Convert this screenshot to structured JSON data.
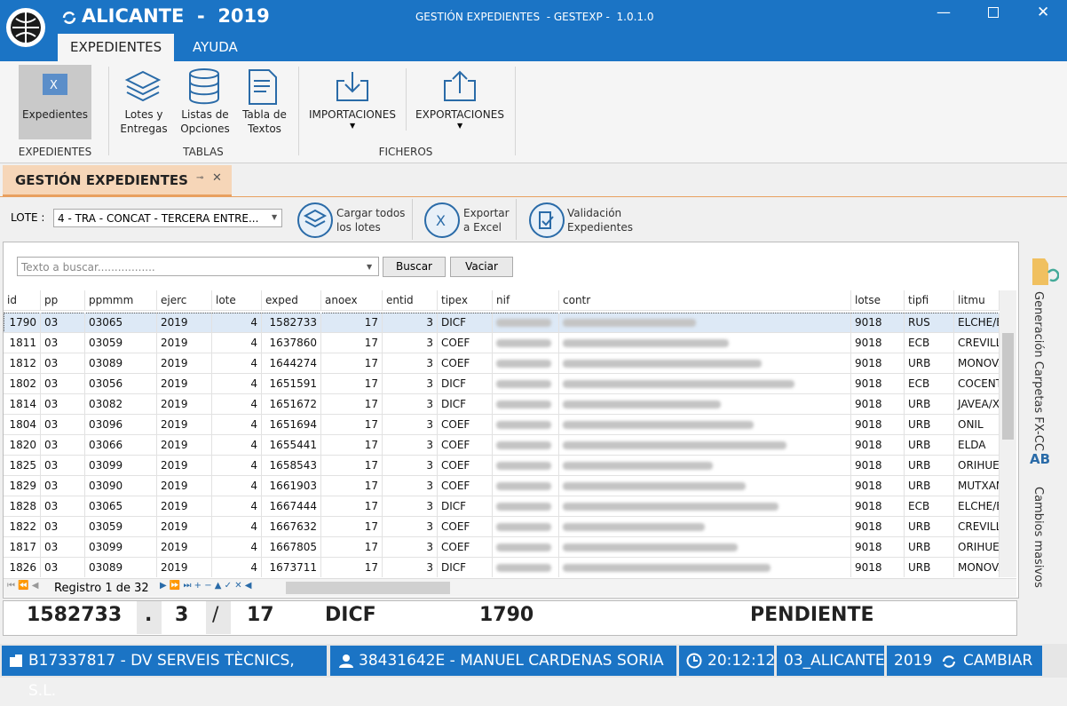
{
  "header": {
    "city": "ALICANTE  -  2019",
    "app_title": "GESTIÓN EXPEDIENTES  - GESTEXP -  1.0.1.0",
    "tabs": [
      "EXPEDIENTES",
      "AYUDA"
    ]
  },
  "ribbon": {
    "groups": [
      {
        "label": "EXPEDIENTES",
        "buttons": [
          "Expedientes"
        ]
      },
      {
        "label": "TABLAS",
        "buttons": [
          "Lotes y\nEntregas",
          "Listas de\nOpciones",
          "Tabla de\nTextos"
        ]
      },
      {
        "label": "FICHEROS",
        "buttons": [
          "IMPORTACIONES",
          "EXPORTACIONES"
        ]
      }
    ]
  },
  "document_tab": "GESTIÓN EXPEDIENTES",
  "toolbar": {
    "lote_label": "LOTE :",
    "lote_value": "4 - TRA - CONCAT - TERCERA ENTRE...",
    "buttons": [
      "Cargar todos\nlos lotes",
      "Exportar\na Excel",
      "Validación\nExpedientes"
    ]
  },
  "search": {
    "placeholder": "Texto a buscar.................",
    "buttons": [
      "Buscar",
      "Vaciar"
    ]
  },
  "table": {
    "columns": [
      "id",
      "pp",
      "ppmmm",
      "ejerc",
      "lote",
      "exped",
      "anoex",
      "entid",
      "tipex",
      "nif",
      "contr",
      "lotse",
      "tipfi",
      "litmu"
    ],
    "rows": [
      [
        "1790",
        "03",
        "03065",
        "2019",
        "4",
        "1582733",
        "17",
        "3",
        "DICF",
        "",
        "",
        "9018",
        "RUS",
        "ELCHE/E"
      ],
      [
        "1811",
        "03",
        "03059",
        "2019",
        "4",
        "1637860",
        "17",
        "3",
        "COEF",
        "",
        "",
        "9018",
        "ECB",
        "CREVILL"
      ],
      [
        "1812",
        "03",
        "03089",
        "2019",
        "4",
        "1644274",
        "17",
        "3",
        "COEF",
        "",
        "",
        "9018",
        "URB",
        "MONOVA"
      ],
      [
        "1802",
        "03",
        "03056",
        "2019",
        "4",
        "1651591",
        "17",
        "3",
        "DICF",
        "",
        "",
        "9018",
        "ECB",
        "COCENT"
      ],
      [
        "1814",
        "03",
        "03082",
        "2019",
        "4",
        "1651672",
        "17",
        "3",
        "DICF",
        "",
        "",
        "9018",
        "URB",
        "JAVEA/X"
      ],
      [
        "1804",
        "03",
        "03096",
        "2019",
        "4",
        "1651694",
        "17",
        "3",
        "COEF",
        "",
        "",
        "9018",
        "URB",
        "ONIL"
      ],
      [
        "1820",
        "03",
        "03066",
        "2019",
        "4",
        "1655441",
        "17",
        "3",
        "COEF",
        "",
        "",
        "9018",
        "URB",
        "ELDA"
      ],
      [
        "1825",
        "03",
        "03099",
        "2019",
        "4",
        "1658543",
        "17",
        "3",
        "COEF",
        "",
        "",
        "9018",
        "URB",
        "ORIHUE"
      ],
      [
        "1829",
        "03",
        "03090",
        "2019",
        "4",
        "1661903",
        "17",
        "3",
        "COEF",
        "",
        "",
        "9018",
        "URB",
        "MUTXAM"
      ],
      [
        "1828",
        "03",
        "03065",
        "2019",
        "4",
        "1667444",
        "17",
        "3",
        "DICF",
        "",
        "",
        "9018",
        "ECB",
        "ELCHE/E"
      ],
      [
        "1822",
        "03",
        "03059",
        "2019",
        "4",
        "1667632",
        "17",
        "3",
        "COEF",
        "",
        "",
        "9018",
        "URB",
        "CREVILL"
      ],
      [
        "1817",
        "03",
        "03099",
        "2019",
        "4",
        "1667805",
        "17",
        "3",
        "COEF",
        "",
        "",
        "9018",
        "URB",
        "ORIHUE"
      ],
      [
        "1826",
        "03",
        "03089",
        "2019",
        "4",
        "1673711",
        "17",
        "3",
        "DICF",
        "",
        "",
        "9018",
        "URB",
        "MONOVA"
      ]
    ]
  },
  "pager": "Registro 1 de 32",
  "summary": [
    "1582733",
    ".",
    "3",
    "/",
    "17",
    "DICF",
    "1790",
    "PENDIENTE"
  ],
  "side_panel": [
    "Generación Carpetas FX-CC",
    "Cambios masivos"
  ],
  "status_bar": {
    "company": "B17337817 - DV SERVEIS TÈCNICS, S.L.",
    "user": "38431642E - MANUEL CARDENAS SORIA",
    "time": "20:12:12",
    "office": "03_ALICANTE",
    "year": "2019",
    "change": "CAMBIAR"
  }
}
